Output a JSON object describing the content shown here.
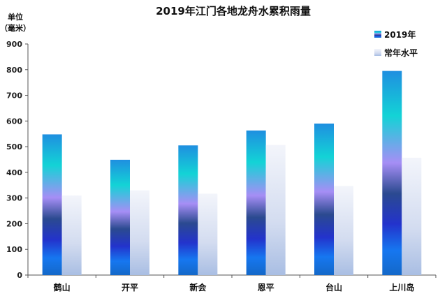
{
  "chart_data": {
    "type": "bar",
    "title": "2019年江门各地龙舟水累积雨量",
    "unit_label_line1": "单位",
    "unit_label_line2": "（毫米）",
    "categories": [
      "鹤山",
      "开平",
      "新会",
      "恩平",
      "台山",
      "上川岛"
    ],
    "series": [
      {
        "name": "2019年",
        "values": [
          548,
          449,
          505,
          563,
          590,
          795
        ]
      },
      {
        "name": "常年水平",
        "values": [
          310,
          330,
          317,
          507,
          347,
          457
        ]
      }
    ],
    "ylim": [
      0,
      900
    ],
    "yticks": [
      0,
      100,
      200,
      300,
      400,
      500,
      600,
      700,
      800,
      900
    ],
    "grid": false,
    "legend_position": "top-right"
  }
}
